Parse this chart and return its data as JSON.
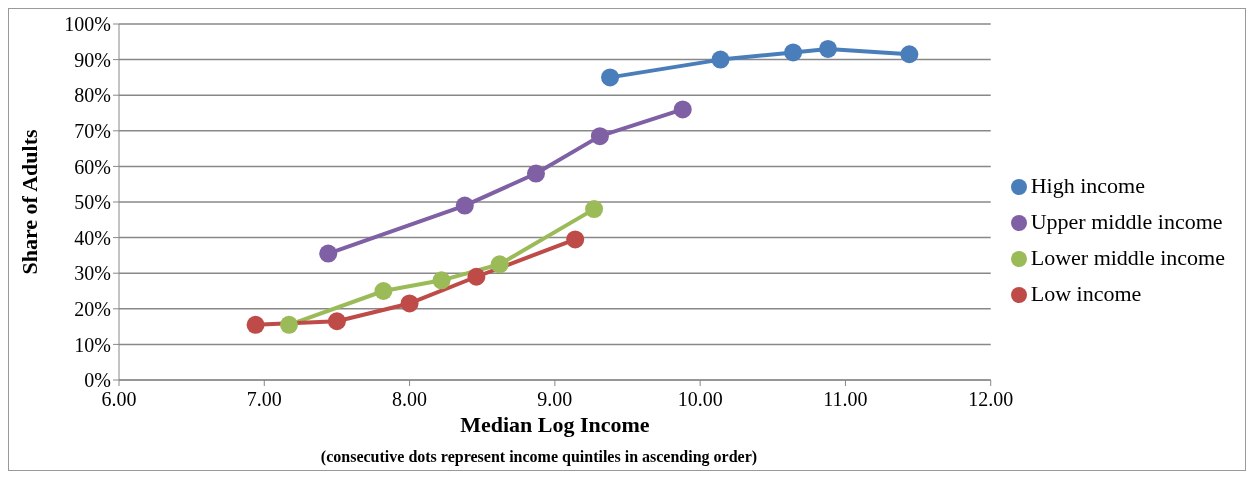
{
  "chart_data": {
    "type": "line",
    "xlabel": "Median Log Income",
    "ylabel": "Share of Adults",
    "annotations": [
      "(consecutive dots represent income quintiles in ascending order)"
    ],
    "xlim": [
      6,
      12
    ],
    "xticks": [
      {
        "value": 6,
        "label": "6.00"
      },
      {
        "value": 7,
        "label": "7.00"
      },
      {
        "value": 8,
        "label": "8.00"
      },
      {
        "value": 9,
        "label": "9.00"
      },
      {
        "value": 10,
        "label": "10.00"
      },
      {
        "value": 11,
        "label": "11.00"
      },
      {
        "value": 12,
        "label": "12.00"
      }
    ],
    "ylim": [
      0,
      100
    ],
    "yticks": [
      {
        "value": 0,
        "label": "0%"
      },
      {
        "value": 10,
        "label": "10%"
      },
      {
        "value": 20,
        "label": "20%"
      },
      {
        "value": 30,
        "label": "30%"
      },
      {
        "value": 40,
        "label": "40%"
      },
      {
        "value": 50,
        "label": "50%"
      },
      {
        "value": 60,
        "label": "60%"
      },
      {
        "value": 70,
        "label": "70%"
      },
      {
        "value": 80,
        "label": "80%"
      },
      {
        "value": 90,
        "label": "90%"
      },
      {
        "value": 100,
        "label": "100%"
      }
    ],
    "grid": "y",
    "legend": "right",
    "marker": "circle",
    "line_style": "solid",
    "series": [
      {
        "name": "High income",
        "color": "#4a7ebb",
        "x": [
          9.38,
          10.14,
          10.64,
          10.88,
          11.44
        ],
        "values": [
          85,
          90,
          92,
          93,
          91.5
        ]
      },
      {
        "name": "Upper middle income",
        "color": "#7f60a4",
        "x": [
          7.44,
          8.38,
          8.87,
          9.31,
          9.88
        ],
        "values": [
          35.5,
          49,
          58,
          68.5,
          76
        ]
      },
      {
        "name": "Lower middle income",
        "color": "#9bbb59",
        "x": [
          7.17,
          7.82,
          8.22,
          8.62,
          9.27
        ],
        "values": [
          15.5,
          25,
          28,
          32.5,
          48
        ]
      },
      {
        "name": "Low income",
        "color": "#be4b48",
        "x": [
          6.94,
          7.5,
          8,
          8.46,
          9.14
        ],
        "values": [
          15.5,
          16.5,
          21.5,
          29,
          39.5
        ]
      }
    ]
  }
}
